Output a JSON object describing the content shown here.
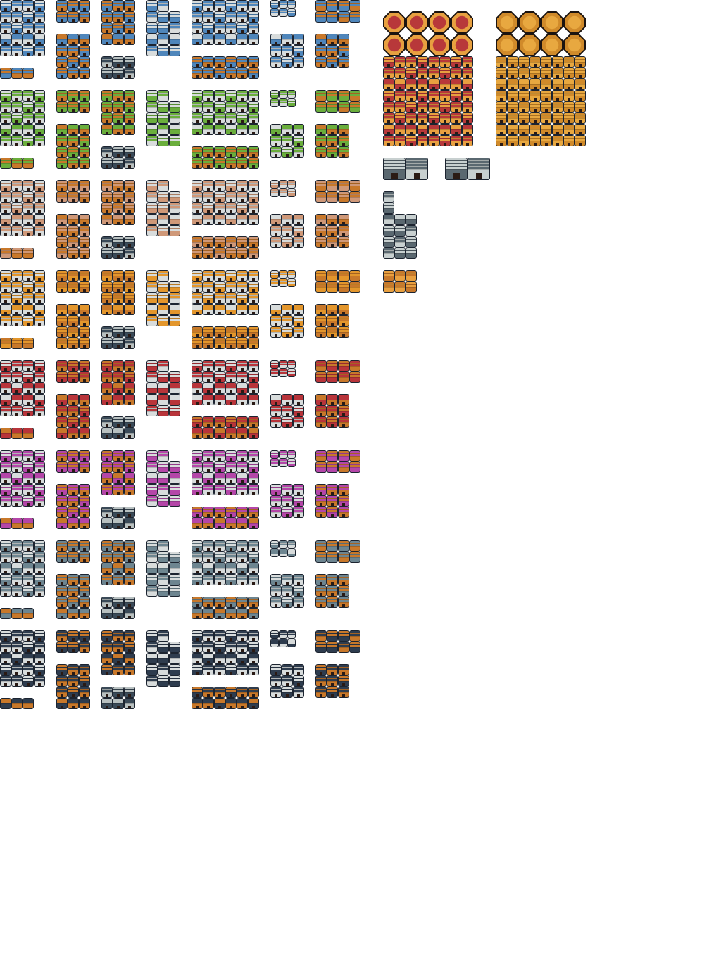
{
  "sheet": {
    "kind": "house tileset sprite sheet",
    "roof_variants": [
      {
        "name": "blue",
        "roof": "#4f86bb",
        "roof_dark": "#2f5a86"
      },
      {
        "name": "green",
        "roof": "#6aae3c",
        "roof_dark": "#3f7a24"
      },
      {
        "name": "tan",
        "roof": "#cf9878",
        "roof_dark": "#9a6a52"
      },
      {
        "name": "orange",
        "roof": "#e3962c",
        "roof_dark": "#a8621a"
      },
      {
        "name": "red",
        "roof": "#b8343a",
        "roof_dark": "#7a1f26"
      },
      {
        "name": "magenta",
        "roof": "#b446a8",
        "roof_dark": "#7a2a72"
      },
      {
        "name": "gray",
        "roof": "#6d8590",
        "roof_dark": "#465a64"
      },
      {
        "name": "navy",
        "roof": "#2e3c4e",
        "roof_dark": "#1a2430"
      }
    ],
    "wall_wood": "#c8782a",
    "wall_stone": "#d8dcdc",
    "outline": "#1c2430",
    "palace_variants": [
      {
        "name": "red",
        "main": "#b8383a",
        "trim": "#e8a040"
      },
      {
        "name": "gold",
        "main": "#e8a840",
        "trim": "#d08a2a"
      }
    ],
    "extras_color": "#5a6870"
  }
}
